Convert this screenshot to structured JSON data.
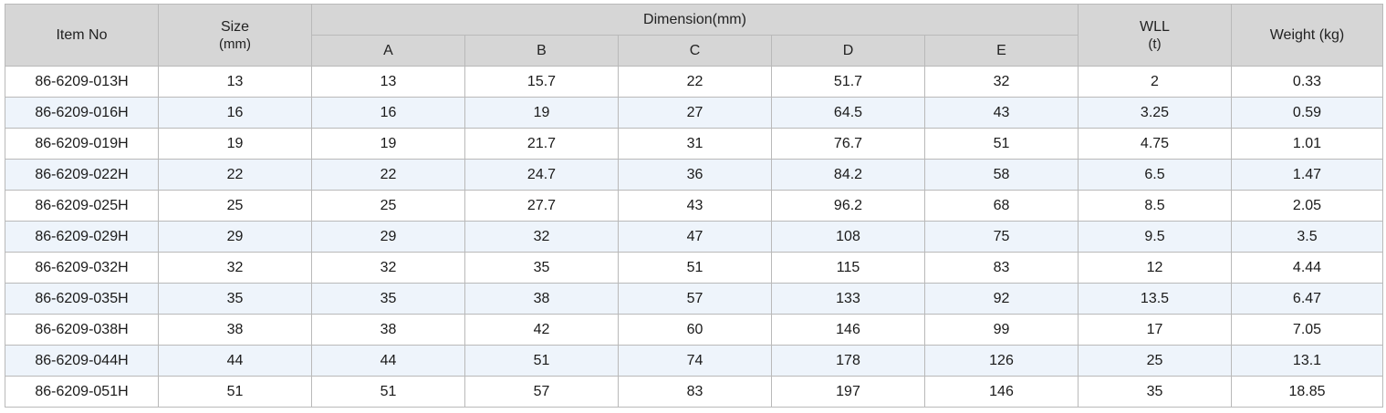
{
  "headers": {
    "item_no": "Item No",
    "size_line1": "Size",
    "size_line2": "(mm)",
    "dimension": "Dimension(mm)",
    "dim_cols": [
      "A",
      "B",
      "C",
      "D",
      "E"
    ],
    "wll_line1": "WLL",
    "wll_line2": "(t)",
    "weight": "Weight (kg)"
  },
  "rows": [
    [
      "86-6209-013H",
      "13",
      "13",
      "15.7",
      "22",
      "51.7",
      "32",
      "2",
      "0.33"
    ],
    [
      "86-6209-016H",
      "16",
      "16",
      "19",
      "27",
      "64.5",
      "43",
      "3.25",
      "0.59"
    ],
    [
      "86-6209-019H",
      "19",
      "19",
      "21.7",
      "31",
      "76.7",
      "51",
      "4.75",
      "1.01"
    ],
    [
      "86-6209-022H",
      "22",
      "22",
      "24.7",
      "36",
      "84.2",
      "58",
      "6.5",
      "1.47"
    ],
    [
      "86-6209-025H",
      "25",
      "25",
      "27.7",
      "43",
      "96.2",
      "68",
      "8.5",
      "2.05"
    ],
    [
      "86-6209-029H",
      "29",
      "29",
      "32",
      "47",
      "108",
      "75",
      "9.5",
      "3.5"
    ],
    [
      "86-6209-032H",
      "32",
      "32",
      "35",
      "51",
      "115",
      "83",
      "12",
      "4.44"
    ],
    [
      "86-6209-035H",
      "35",
      "35",
      "38",
      "57",
      "133",
      "92",
      "13.5",
      "6.47"
    ],
    [
      "86-6209-038H",
      "38",
      "38",
      "42",
      "60",
      "146",
      "99",
      "17",
      "7.05"
    ],
    [
      "86-6209-044H",
      "44",
      "44",
      "51",
      "74",
      "178",
      "126",
      "25",
      "13.1"
    ],
    [
      "86-6209-051H",
      "51",
      "51",
      "57",
      "83",
      "197",
      "146",
      "35",
      "18.85"
    ]
  ]
}
